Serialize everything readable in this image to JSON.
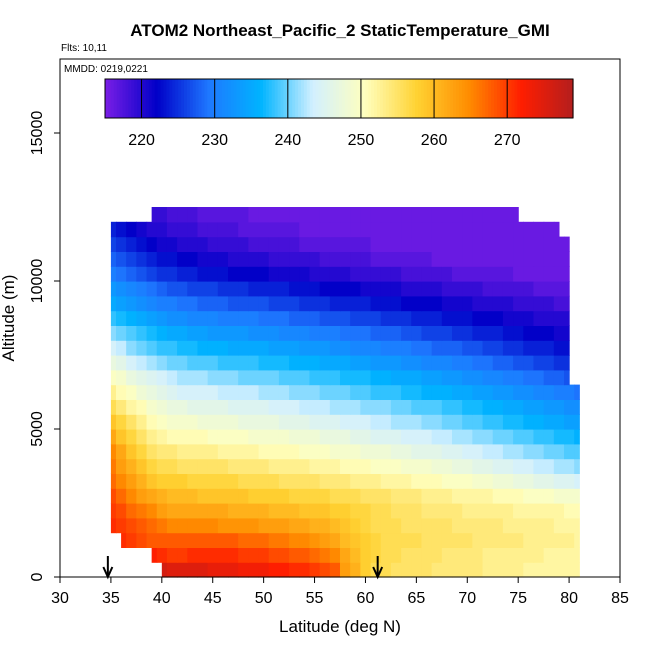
{
  "chart_data": {
    "type": "heatmap",
    "title": "ATOM2 Northeast_Pacific_2 StaticTemperature_GMI",
    "flights_label": "Flts: 10,11",
    "dates_label": "MMDD: 0219,0221",
    "xlabel": "Latitude (deg N)",
    "ylabel": "Altitude (m)",
    "xlim": [
      30,
      85
    ],
    "ylim": [
      0,
      17500
    ],
    "xticks": [
      30,
      35,
      40,
      45,
      50,
      55,
      60,
      65,
      70,
      75,
      80,
      85
    ],
    "yticks": [
      0,
      5000,
      10000,
      15000
    ],
    "grid": false,
    "legend": "colorbar-top",
    "colorbar": {
      "range": [
        215,
        279
      ],
      "ticks": [
        220,
        230,
        240,
        250,
        260,
        270
      ],
      "colors": [
        "#7a1ee6",
        "#0000c8",
        "#1e78ff",
        "#00b4ff",
        "#d2f0ff",
        "#ffffbe",
        "#ffd232",
        "#ff8c00",
        "#ff1e00",
        "#b41e1e"
      ]
    },
    "arrows": [
      34.7,
      61.2
    ],
    "lat_start": 34.5,
    "lat_step": 1.0,
    "alt_start": 0,
    "alt_step": 500,
    "lat_extent": [
      [
        40,
        81
      ],
      [
        39,
        81
      ],
      [
        36,
        81
      ],
      [
        35,
        81
      ],
      [
        35,
        81
      ],
      [
        35,
        81
      ],
      [
        35,
        81
      ],
      [
        35,
        81
      ],
      [
        35,
        81
      ],
      [
        35,
        81
      ],
      [
        35,
        81
      ],
      [
        35,
        81
      ],
      [
        35,
        81
      ],
      [
        35,
        80
      ],
      [
        35,
        80
      ],
      [
        35,
        80
      ],
      [
        35,
        80
      ],
      [
        35,
        80
      ],
      [
        35,
        80
      ],
      [
        35,
        80
      ],
      [
        35,
        80
      ],
      [
        35,
        80
      ],
      [
        35,
        80
      ],
      [
        35,
        79
      ],
      [
        39,
        75
      ]
    ],
    "temperature_grid": [
      [
        277,
        277,
        277,
        277,
        277,
        276,
        275,
        275,
        275,
        275,
        274,
        274,
        274,
        273,
        273,
        273,
        272,
        272,
        271,
        271,
        270,
        269,
        268,
        263,
        261,
        258,
        256,
        256,
        255,
        255,
        255,
        255,
        254,
        254,
        254,
        254,
        254,
        253,
        253,
        253,
        253,
        252,
        252,
        252,
        252,
        252,
        252
      ],
      [
        275,
        274,
        273,
        273,
        272,
        271,
        270,
        270,
        271,
        271,
        271,
        271,
        271,
        270,
        270,
        270,
        269,
        269,
        268,
        268,
        267,
        266,
        265,
        262,
        260,
        258,
        257,
        256,
        256,
        255,
        255,
        255,
        255,
        254,
        254,
        254,
        254,
        253,
        253,
        253,
        253,
        253,
        253,
        252,
        252,
        252,
        252
      ],
      [
        272,
        271,
        270,
        269,
        268,
        268,
        268,
        268,
        268,
        268,
        268,
        268,
        268,
        267,
        267,
        267,
        266,
        266,
        265,
        265,
        264,
        263,
        262,
        260,
        259,
        258,
        257,
        256,
        256,
        256,
        256,
        255,
        255,
        255,
        255,
        255,
        254,
        254,
        254,
        254,
        254,
        253,
        253,
        253,
        253,
        253,
        252
      ],
      [
        271,
        270,
        269,
        268,
        267,
        266,
        265,
        265,
        265,
        265,
        265,
        264,
        264,
        264,
        264,
        263,
        263,
        263,
        262,
        262,
        261,
        261,
        260,
        259,
        258,
        257,
        256,
        256,
        256,
        255,
        255,
        255,
        255,
        255,
        254,
        254,
        254,
        254,
        254,
        253,
        253,
        253,
        253,
        253,
        252,
        252,
        252
      ],
      [
        270,
        269,
        267,
        266,
        265,
        263,
        262,
        262,
        262,
        262,
        262,
        262,
        261,
        261,
        261,
        261,
        260,
        260,
        260,
        259,
        259,
        259,
        258,
        258,
        257,
        257,
        256,
        256,
        255,
        255,
        255,
        254,
        254,
        254,
        254,
        253,
        253,
        253,
        253,
        253,
        252,
        252,
        252,
        252,
        252,
        251,
        251
      ],
      [
        269,
        267,
        265,
        263,
        262,
        261,
        260,
        260,
        260,
        259,
        259,
        259,
        259,
        259,
        258,
        258,
        258,
        258,
        257,
        257,
        257,
        257,
        256,
        256,
        256,
        255,
        255,
        255,
        254,
        254,
        254,
        253,
        253,
        253,
        252,
        252,
        252,
        252,
        251,
        251,
        251,
        250,
        250,
        250,
        249,
        249,
        249
      ],
      [
        267,
        265,
        263,
        261,
        259,
        258,
        258,
        258,
        257,
        257,
        257,
        257,
        257,
        256,
        256,
        256,
        256,
        255,
        255,
        255,
        255,
        254,
        254,
        254,
        253,
        253,
        253,
        252,
        252,
        252,
        251,
        251,
        251,
        250,
        250,
        250,
        249,
        249,
        248,
        248,
        247,
        247,
        246,
        246,
        245,
        245,
        244
      ],
      [
        266,
        263,
        261,
        259,
        257,
        256,
        256,
        255,
        255,
        255,
        255,
        255,
        254,
        254,
        254,
        254,
        253,
        253,
        253,
        253,
        252,
        252,
        252,
        251,
        251,
        251,
        250,
        250,
        250,
        249,
        249,
        249,
        248,
        248,
        247,
        247,
        246,
        246,
        245,
        245,
        244,
        244,
        243,
        243,
        242,
        242,
        241
      ],
      [
        265,
        262,
        259,
        257,
        255,
        254,
        254,
        253,
        253,
        253,
        253,
        252,
        252,
        252,
        252,
        251,
        251,
        251,
        251,
        250,
        250,
        250,
        249,
        249,
        249,
        248,
        248,
        248,
        247,
        247,
        246,
        246,
        246,
        245,
        245,
        244,
        244,
        243,
        243,
        242,
        242,
        241,
        241,
        240,
        240,
        239,
        239
      ],
      [
        262,
        259,
        257,
        255,
        253,
        252,
        251,
        251,
        251,
        251,
        250,
        250,
        250,
        250,
        249,
        249,
        249,
        249,
        248,
        248,
        248,
        247,
        247,
        247,
        246,
        246,
        245,
        245,
        245,
        244,
        244,
        244,
        243,
        243,
        242,
        242,
        241,
        241,
        240,
        240,
        239,
        239,
        238,
        238,
        237,
        237,
        236
      ],
      [
        259,
        257,
        255,
        253,
        251,
        250,
        249,
        249,
        249,
        248,
        248,
        248,
        248,
        247,
        247,
        247,
        247,
        246,
        246,
        246,
        245,
        245,
        245,
        244,
        244,
        244,
        243,
        243,
        242,
        242,
        242,
        241,
        241,
        240,
        240,
        239,
        239,
        238,
        238,
        237,
        237,
        236,
        236,
        235,
        235,
        234,
        234
      ],
      [
        256,
        254,
        252,
        251,
        249,
        248,
        247,
        247,
        246,
        246,
        246,
        246,
        245,
        245,
        245,
        245,
        244,
        244,
        244,
        243,
        243,
        243,
        242,
        242,
        242,
        241,
        241,
        241,
        240,
        240,
        239,
        239,
        239,
        238,
        238,
        237,
        237,
        236,
        236,
        235,
        235,
        234,
        234,
        233,
        233,
        232,
        232
      ],
      [
        253,
        251,
        250,
        248,
        247,
        246,
        245,
        244,
        244,
        244,
        244,
        243,
        243,
        243,
        243,
        242,
        242,
        242,
        241,
        241,
        241,
        240,
        240,
        240,
        239,
        239,
        238,
        238,
        238,
        237,
        237,
        236,
        236,
        236,
        235,
        235,
        234,
        234,
        233,
        233,
        232,
        232,
        231,
        231,
        230,
        230,
        229
      ],
      [
        250,
        249,
        247,
        246,
        245,
        244,
        243,
        242,
        242,
        242,
        241,
        241,
        241,
        240,
        240,
        240,
        240,
        239,
        239,
        239,
        238,
        238,
        238,
        237,
        237,
        237,
        236,
        236,
        235,
        235,
        235,
        234,
        234,
        233,
        233,
        232,
        232,
        231,
        231,
        230,
        230,
        229,
        229,
        228,
        228,
        227,
        227
      ],
      [
        247,
        246,
        244,
        243,
        242,
        241,
        240,
        240,
        239,
        239,
        239,
        238,
        238,
        238,
        238,
        237,
        237,
        237,
        236,
        236,
        236,
        235,
        235,
        235,
        234,
        234,
        233,
        233,
        233,
        232,
        232,
        231,
        231,
        231,
        230,
        230,
        229,
        229,
        228,
        228,
        227,
        227,
        226,
        226,
        225,
        225,
        224
      ],
      [
        244,
        243,
        241,
        240,
        239,
        238,
        238,
        237,
        237,
        236,
        236,
        236,
        235,
        235,
        235,
        235,
        234,
        234,
        234,
        233,
        233,
        233,
        232,
        232,
        231,
        231,
        231,
        230,
        230,
        230,
        229,
        229,
        228,
        228,
        228,
        227,
        227,
        226,
        226,
        225,
        225,
        224,
        224,
        224,
        223,
        223,
        222
      ],
      [
        241,
        240,
        239,
        238,
        237,
        236,
        235,
        235,
        234,
        234,
        233,
        233,
        233,
        233,
        232,
        232,
        232,
        231,
        231,
        231,
        230,
        230,
        230,
        229,
        229,
        229,
        228,
        228,
        228,
        227,
        227,
        226,
        226,
        226,
        225,
        225,
        224,
        224,
        224,
        223,
        223,
        222,
        222,
        222,
        221,
        221,
        221
      ],
      [
        238,
        237,
        236,
        235,
        234,
        233,
        232,
        232,
        231,
        231,
        231,
        230,
        230,
        230,
        230,
        229,
        229,
        229,
        228,
        228,
        228,
        227,
        227,
        227,
        226,
        226,
        226,
        225,
        225,
        225,
        224,
        224,
        224,
        223,
        223,
        223,
        222,
        222,
        222,
        221,
        221,
        221,
        220,
        220,
        220,
        220,
        219
      ],
      [
        235,
        234,
        233,
        232,
        231,
        230,
        230,
        229,
        229,
        228,
        228,
        228,
        227,
        227,
        227,
        227,
        226,
        226,
        226,
        225,
        225,
        225,
        224,
        224,
        224,
        224,
        223,
        223,
        223,
        222,
        222,
        222,
        222,
        221,
        221,
        221,
        220,
        220,
        220,
        220,
        219,
        219,
        219,
        219,
        218,
        218,
        218
      ],
      [
        233,
        232,
        231,
        230,
        229,
        228,
        227,
        227,
        226,
        226,
        226,
        225,
        225,
        225,
        224,
        224,
        224,
        224,
        223,
        223,
        223,
        222,
        222,
        222,
        222,
        221,
        221,
        221,
        221,
        220,
        220,
        220,
        220,
        219,
        219,
        219,
        219,
        218,
        218,
        218,
        218,
        218,
        217,
        217,
        217,
        217,
        217
      ],
      [
        230,
        229,
        228,
        227,
        226,
        225,
        225,
        224,
        224,
        223,
        223,
        223,
        222,
        222,
        222,
        222,
        221,
        221,
        221,
        221,
        220,
        220,
        220,
        220,
        219,
        219,
        219,
        219,
        219,
        218,
        218,
        218,
        218,
        218,
        217,
        217,
        217,
        217,
        217,
        217,
        216,
        216,
        216,
        216,
        216,
        216,
        216
      ],
      [
        228,
        227,
        226,
        225,
        224,
        223,
        223,
        222,
        222,
        221,
        221,
        221,
        220,
        220,
        220,
        220,
        219,
        219,
        219,
        219,
        219,
        218,
        218,
        218,
        218,
        218,
        217,
        217,
        217,
        217,
        217,
        217,
        216,
        216,
        216,
        216,
        216,
        216,
        216,
        216,
        216,
        216,
        216,
        216,
        216,
        216,
        216
      ],
      [
        226,
        225,
        224,
        223,
        222,
        221,
        221,
        220,
        220,
        220,
        219,
        219,
        219,
        219,
        218,
        218,
        218,
        218,
        218,
        217,
        217,
        217,
        217,
        217,
        217,
        217,
        216,
        216,
        216,
        216,
        216,
        216,
        216,
        216,
        216,
        216,
        216,
        216,
        216,
        216,
        216,
        216,
        216,
        216,
        216,
        216,
        216
      ],
      [
        224,
        223,
        222,
        221,
        220,
        220,
        219,
        219,
        219,
        218,
        218,
        218,
        218,
        217,
        217,
        217,
        217,
        217,
        217,
        216,
        216,
        216,
        216,
        216,
        216,
        216,
        216,
        216,
        216,
        216,
        216,
        216,
        216,
        216,
        216,
        216,
        216,
        216,
        216,
        216,
        216,
        216,
        216,
        216,
        216,
        216,
        216
      ],
      [
        222,
        221,
        220,
        220,
        219,
        219,
        218,
        218,
        218,
        217,
        217,
        217,
        217,
        217,
        216,
        216,
        216,
        216,
        216,
        216,
        216,
        216,
        216,
        216,
        216,
        216,
        216,
        216,
        216,
        216,
        216,
        216,
        216,
        216,
        216,
        216,
        216,
        216,
        216,
        216,
        216,
        216,
        216,
        216,
        216,
        216,
        216
      ]
    ]
  }
}
